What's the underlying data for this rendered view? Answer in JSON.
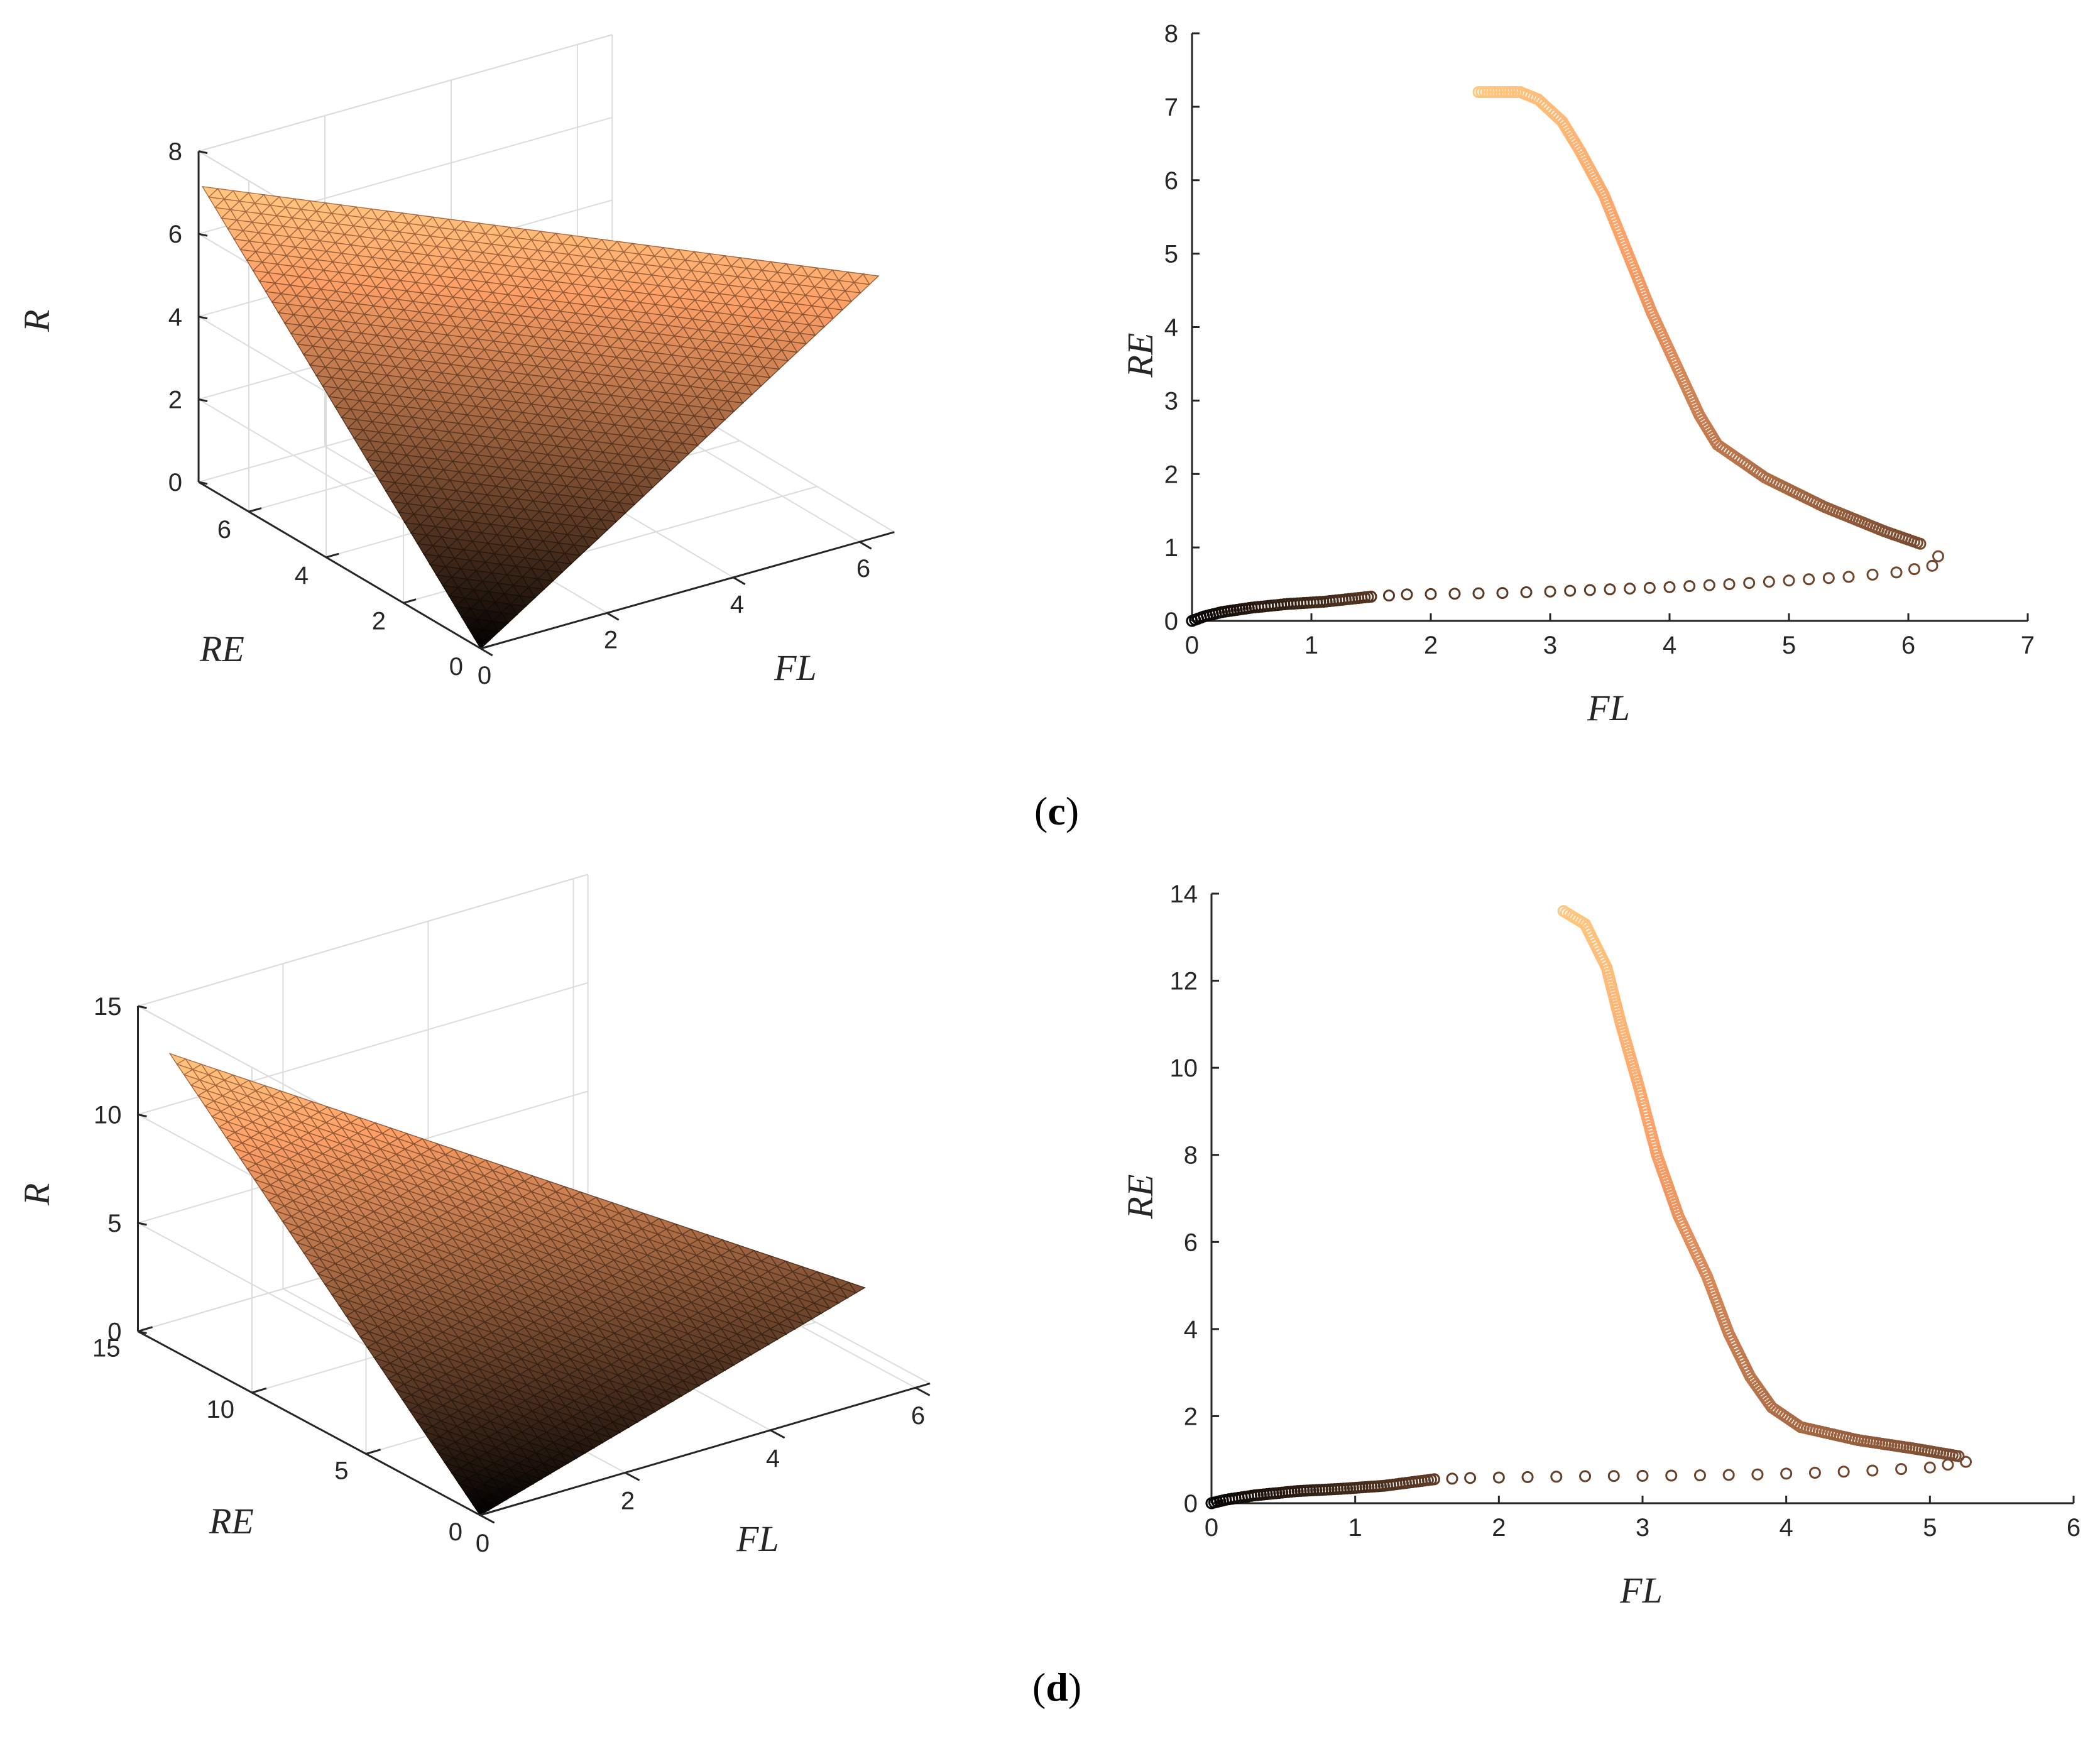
{
  "colors": {
    "axis": "#262626",
    "grid": "#dcdcdc",
    "cmap_dark": "#000000",
    "cmap_light": "#ffc77f"
  },
  "panels": [
    {
      "label": "c",
      "label_text": "c"
    },
    {
      "label": "d",
      "label_text": "d"
    }
  ],
  "chart_data": [
    {
      "type": "surface3d",
      "panel": "c-left",
      "xlabel": "FL",
      "ylabel": "RE",
      "zlabel": "R",
      "x_ticks": [
        "0",
        "2",
        "4",
        "6"
      ],
      "y_ticks": [
        "0",
        "2",
        "4",
        "6"
      ],
      "z_ticks": [
        "0",
        "2",
        "4",
        "6",
        "8"
      ],
      "xlim": [
        0,
        6.3
      ],
      "ylim": [
        0,
        7.2
      ],
      "zlim": [
        0,
        8
      ],
      "colormap": "copper",
      "surface": "triangle",
      "vertices": [
        {
          "FL": 0,
          "RE": 0,
          "R": 0
        },
        {
          "FL": 0,
          "RE": 7.2,
          "R": 7.2
        },
        {
          "FL": 6.3,
          "RE": 0,
          "R": 6.3
        }
      ]
    },
    {
      "type": "scatter",
      "panel": "c-right",
      "xlabel": "FL",
      "ylabel": "RE",
      "x_ticks": [
        "0",
        "1",
        "2",
        "3",
        "4",
        "5",
        "6",
        "7"
      ],
      "y_ticks": [
        "0",
        "1",
        "2",
        "3",
        "4",
        "5",
        "6",
        "7",
        "8"
      ],
      "xlim": [
        0,
        7
      ],
      "ylim": [
        0,
        8
      ],
      "colormap": "copper",
      "marker": "open-circle",
      "path": [
        [
          0,
          0
        ],
        [
          0.1,
          0.06
        ],
        [
          0.25,
          0.12
        ],
        [
          0.5,
          0.18
        ],
        [
          0.8,
          0.23
        ],
        [
          1.1,
          0.26
        ],
        [
          1.5,
          0.33
        ],
        [
          1.5,
          0.33
        ],
        [
          1.8,
          0.36
        ],
        [
          2.2,
          0.37
        ],
        [
          2.6,
          0.38
        ],
        [
          3.0,
          0.4
        ],
        [
          3.5,
          0.43
        ],
        [
          4.0,
          0.46
        ],
        [
          4.5,
          0.5
        ],
        [
          5.0,
          0.55
        ],
        [
          5.5,
          0.6
        ],
        [
          5.9,
          0.66
        ],
        [
          6.2,
          0.75
        ],
        [
          6.25,
          0.88
        ],
        [
          6.1,
          1.05
        ],
        [
          5.8,
          1.22
        ],
        [
          5.3,
          1.55
        ],
        [
          4.8,
          1.95
        ],
        [
          4.4,
          2.4
        ],
        [
          4.25,
          2.8
        ],
        [
          4.05,
          3.5
        ],
        [
          3.85,
          4.2
        ],
        [
          3.65,
          5.0
        ],
        [
          3.45,
          5.8
        ],
        [
          3.25,
          6.4
        ],
        [
          3.1,
          6.8
        ],
        [
          2.9,
          7.1
        ],
        [
          2.75,
          7.2
        ],
        [
          2.5,
          7.2
        ],
        [
          2.4,
          7.2
        ]
      ]
    },
    {
      "type": "surface3d",
      "panel": "d-left",
      "xlabel": "FL",
      "ylabel": "RE",
      "zlabel": "R",
      "x_ticks": [
        "0",
        "2",
        "4",
        "6"
      ],
      "y_ticks": [
        "0",
        "5",
        "10",
        "15"
      ],
      "z_ticks": [
        "0",
        "5",
        "10",
        "15"
      ],
      "xlim": [
        0,
        5.3
      ],
      "ylim": [
        0,
        13.6
      ],
      "zlim": [
        0,
        15
      ],
      "colormap": "copper",
      "surface": "triangle",
      "vertices": [
        {
          "FL": 0,
          "RE": 0,
          "R": 0
        },
        {
          "FL": 0,
          "RE": 13.6,
          "R": 13.6
        },
        {
          "FL": 5.3,
          "RE": 0,
          "R": 5.3
        }
      ]
    },
    {
      "type": "scatter",
      "panel": "d-right",
      "xlabel": "FL",
      "ylabel": "RE",
      "x_ticks": [
        "0",
        "1",
        "2",
        "3",
        "4",
        "5",
        "6"
      ],
      "y_ticks": [
        "0",
        "2",
        "4",
        "6",
        "8",
        "10",
        "12",
        "14"
      ],
      "xlim": [
        0,
        6
      ],
      "ylim": [
        0,
        14
      ],
      "colormap": "copper",
      "marker": "open-circle",
      "path": [
        [
          0,
          0
        ],
        [
          0.1,
          0.08
        ],
        [
          0.3,
          0.18
        ],
        [
          0.6,
          0.28
        ],
        [
          0.9,
          0.33
        ],
        [
          1.2,
          0.4
        ],
        [
          1.55,
          0.55
        ],
        [
          1.55,
          0.55
        ],
        [
          1.8,
          0.58
        ],
        [
          2.2,
          0.6
        ],
        [
          2.6,
          0.62
        ],
        [
          3.0,
          0.63
        ],
        [
          3.4,
          0.64
        ],
        [
          3.8,
          0.66
        ],
        [
          4.2,
          0.7
        ],
        [
          4.6,
          0.75
        ],
        [
          5.0,
          0.82
        ],
        [
          5.25,
          0.95
        ],
        [
          5.2,
          1.08
        ],
        [
          4.9,
          1.25
        ],
        [
          4.5,
          1.45
        ],
        [
          4.1,
          1.75
        ],
        [
          3.9,
          2.2
        ],
        [
          3.75,
          2.9
        ],
        [
          3.6,
          3.9
        ],
        [
          3.45,
          5.2
        ],
        [
          3.25,
          6.6
        ],
        [
          3.1,
          8.0
        ],
        [
          2.98,
          9.5
        ],
        [
          2.85,
          11.0
        ],
        [
          2.75,
          12.3
        ],
        [
          2.6,
          13.3
        ],
        [
          2.45,
          13.6
        ]
      ]
    }
  ]
}
